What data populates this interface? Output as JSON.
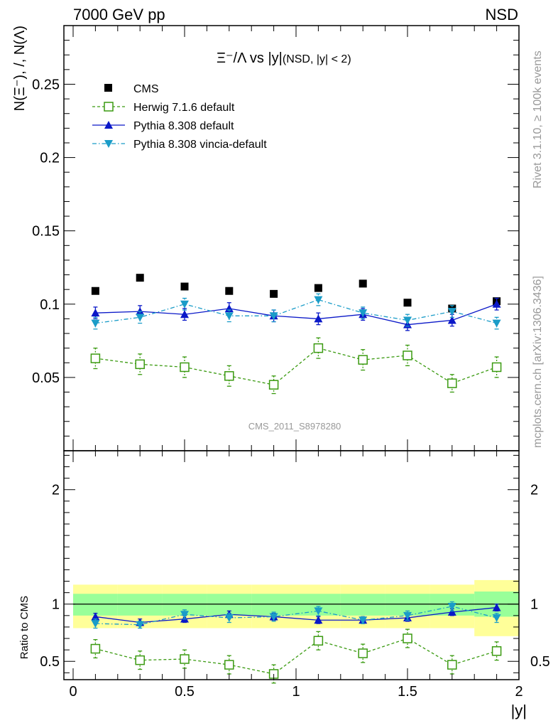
{
  "header": {
    "left": "7000 GeV pp",
    "right": "NSD"
  },
  "side_texts": {
    "rivet": "Rivet 3.1.10, ≥ 100k events",
    "mcplots": "mcplots.cern.ch [arXiv:1306.3436]"
  },
  "watermark": "CMS_2011_S8978280",
  "chart_data": [
    {
      "type": "scatter",
      "title": "Ξ⁻/Λ vs |y|",
      "title_suffix": "(NSD, |y| < 2)",
      "ylabel": "N(Ξ⁻), /, N(Λ)",
      "xlim": [
        0,
        2
      ],
      "ylim": [
        0,
        0.29
      ],
      "yticks": [
        {
          "v": 0.05,
          "label": "0.05"
        },
        {
          "v": 0.1,
          "label": "0.1"
        },
        {
          "v": 0.15,
          "label": "0.15"
        },
        {
          "v": 0.2,
          "label": "0.2"
        },
        {
          "v": 0.25,
          "label": "0.25"
        }
      ],
      "legend_position": "top-left",
      "x": [
        0.1,
        0.3,
        0.5,
        0.7,
        0.9,
        1.1,
        1.3,
        1.5,
        1.7,
        1.9
      ],
      "series": [
        {
          "name": "CMS",
          "marker": "square-filled",
          "line": "none",
          "color": "#000000",
          "values": [
            0.109,
            0.118,
            0.112,
            0.109,
            0.107,
            0.111,
            0.114,
            0.101,
            0.097,
            0.102
          ],
          "errors": [
            0,
            0,
            0,
            0,
            0,
            0,
            0,
            0,
            0,
            0
          ]
        },
        {
          "name": "Herwig 7.1.6 default",
          "marker": "square-open",
          "line": "dashed",
          "color": "#3a9a10",
          "values": [
            0.063,
            0.059,
            0.057,
            0.051,
            0.045,
            0.07,
            0.062,
            0.065,
            0.046,
            0.057
          ],
          "errors": [
            0.007,
            0.007,
            0.007,
            0.007,
            0.006,
            0.007,
            0.007,
            0.007,
            0.006,
            0.007
          ]
        },
        {
          "name": "Pythia 8.308 default",
          "marker": "triangle-up",
          "line": "solid",
          "color": "#0a18c8",
          "values": [
            0.094,
            0.095,
            0.093,
            0.097,
            0.092,
            0.09,
            0.093,
            0.086,
            0.089,
            0.1
          ],
          "errors": [
            0.004,
            0.004,
            0.004,
            0.004,
            0.004,
            0.004,
            0.004,
            0.004,
            0.004,
            0.004
          ]
        },
        {
          "name": "Pythia 8.308 vincia-default",
          "marker": "triangle-down",
          "line": "dashdot",
          "color": "#1a9cc8",
          "values": [
            0.087,
            0.091,
            0.1,
            0.092,
            0.092,
            0.103,
            0.094,
            0.089,
            0.095,
            0.087
          ],
          "errors": [
            0.004,
            0.004,
            0.004,
            0.004,
            0.004,
            0.004,
            0.004,
            0.004,
            0.004,
            0.004
          ]
        }
      ]
    },
    {
      "type": "scatter",
      "ylabel": "Ratio to CMS",
      "xlabel": "|y|",
      "xlim": [
        0,
        2
      ],
      "ylim": [
        0.34,
        2.34
      ],
      "xticks": [
        {
          "v": 0,
          "label": "0"
        },
        {
          "v": 0.5,
          "label": "0.5"
        },
        {
          "v": 1,
          "label": "1"
        },
        {
          "v": 1.5,
          "label": "1.5"
        },
        {
          "v": 2,
          "label": "2"
        }
      ],
      "yticks": [
        {
          "v": 0.5,
          "label": "0.5"
        },
        {
          "v": 1,
          "label": "1"
        },
        {
          "v": 2,
          "label": "2"
        }
      ],
      "bands": {
        "edges": [
          0,
          0.2,
          0.4,
          0.6,
          0.8,
          1.0,
          1.2,
          1.4,
          1.6,
          1.8,
          2.0
        ],
        "outer_color": "#ffff99",
        "inner_color": "#99ff99",
        "outer": [
          [
            0.79,
            1.17
          ],
          [
            0.79,
            1.17
          ],
          [
            0.79,
            1.17
          ],
          [
            0.79,
            1.17
          ],
          [
            0.79,
            1.17
          ],
          [
            0.79,
            1.17
          ],
          [
            0.79,
            1.17
          ],
          [
            0.79,
            1.17
          ],
          [
            0.79,
            1.17
          ],
          [
            0.72,
            1.21
          ]
        ],
        "inner": [
          [
            0.9,
            1.09
          ],
          [
            0.9,
            1.09
          ],
          [
            0.9,
            1.09
          ],
          [
            0.9,
            1.09
          ],
          [
            0.9,
            1.09
          ],
          [
            0.9,
            1.09
          ],
          [
            0.9,
            1.09
          ],
          [
            0.9,
            1.09
          ],
          [
            0.9,
            1.09
          ],
          [
            0.89,
            1.11
          ]
        ]
      },
      "x": [
        0.1,
        0.3,
        0.5,
        0.7,
        0.9,
        1.1,
        1.3,
        1.5,
        1.7,
        1.9
      ],
      "series": [
        {
          "name": "Herwig 7.1.6 default",
          "marker": "square-open",
          "line": "dashed",
          "color": "#3a9a10",
          "values": [
            0.61,
            0.51,
            0.52,
            0.47,
            0.39,
            0.68,
            0.57,
            0.7,
            0.47,
            0.59
          ],
          "errors": [
            0.08,
            0.08,
            0.08,
            0.08,
            0.08,
            0.08,
            0.08,
            0.08,
            0.08,
            0.08
          ]
        },
        {
          "name": "Pythia 8.308 default",
          "marker": "triangle-up",
          "line": "solid",
          "color": "#0a18c8",
          "values": [
            0.89,
            0.84,
            0.87,
            0.91,
            0.89,
            0.86,
            0.86,
            0.88,
            0.93,
            0.97
          ],
          "errors": [
            0.03,
            0.03,
            0.03,
            0.03,
            0.03,
            0.03,
            0.03,
            0.03,
            0.03,
            0.03
          ]
        },
        {
          "name": "Pythia 8.308 vincia-default",
          "marker": "triangle-down",
          "line": "dashdot",
          "color": "#1a9cc8",
          "values": [
            0.83,
            0.82,
            0.91,
            0.88,
            0.89,
            0.94,
            0.86,
            0.9,
            0.98,
            0.88
          ],
          "errors": [
            0.04,
            0.03,
            0.04,
            0.04,
            0.04,
            0.04,
            0.03,
            0.04,
            0.04,
            0.04
          ]
        }
      ]
    }
  ]
}
